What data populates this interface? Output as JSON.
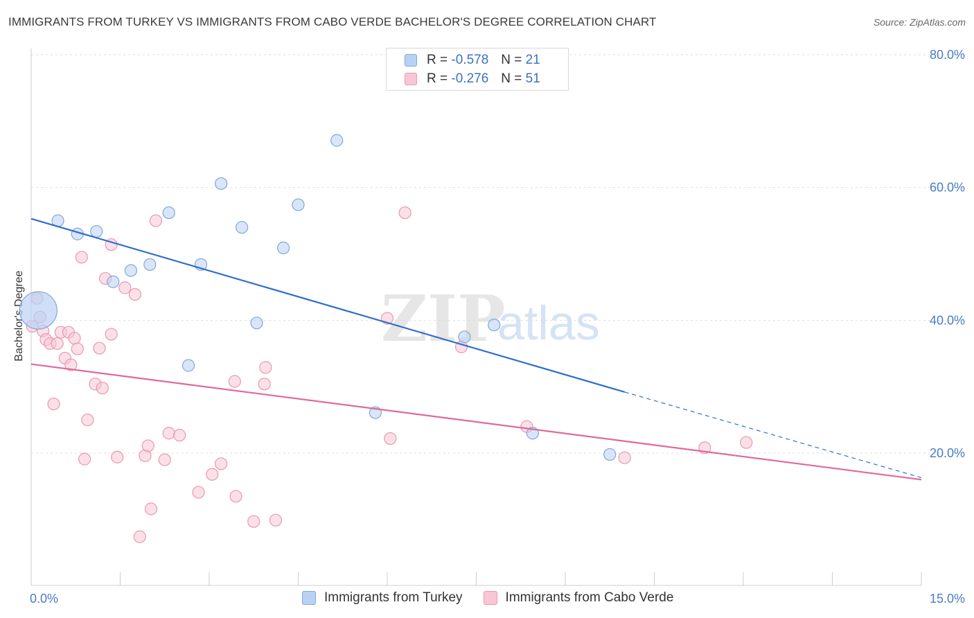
{
  "header": {
    "title": "IMMIGRANTS FROM TURKEY VS IMMIGRANTS FROM CABO VERDE BACHELOR'S DEGREE CORRELATION CHART",
    "source": "Source: ZipAtlas.com"
  },
  "watermark": {
    "zip": "ZIP",
    "atlas": "atlas"
  },
  "legend": {
    "rows": [
      {
        "r_label": "R =",
        "r_value": "-0.578",
        "n_label": "N =",
        "n_value": "21"
      },
      {
        "r_label": "R =",
        "r_value": "-0.276",
        "n_label": "N =",
        "n_value": "51"
      }
    ]
  },
  "colors": {
    "turkey_fill": "#b9d2f3",
    "turkey_stroke": "#7fa6dd",
    "turkey_line": "#2e6fcc",
    "cabo_fill": "#f8c6d5",
    "cabo_stroke": "#e997b0",
    "cabo_line": "#e0689a",
    "tick_label": "#4a7cc4",
    "grid": "#dddddd"
  },
  "chart_data": {
    "type": "scatter",
    "title": "IMMIGRANTS FROM TURKEY VS IMMIGRANTS FROM CABO VERDE BACHELOR'S DEGREE CORRELATION CHART",
    "xlabel": "",
    "ylabel": "Bachelor's Degree",
    "xlim": [
      0,
      15
    ],
    "ylim": [
      0,
      82
    ],
    "x_tick_labels": [
      {
        "value": 0,
        "label": "0.0%"
      },
      {
        "value": 15,
        "label": "15.0%"
      }
    ],
    "y_tick_labels": [
      {
        "value": 20,
        "label": "20.0%"
      },
      {
        "value": 40,
        "label": "40.0%"
      },
      {
        "value": 60,
        "label": "60.0%"
      },
      {
        "value": 80,
        "label": "80.0%"
      }
    ],
    "legend_position": "top-center",
    "grid": true,
    "series": [
      {
        "name": "Immigrants from Turkey",
        "points": [
          {
            "x": 0.12,
            "y": 41.5,
            "big": true
          },
          {
            "x": 0.45,
            "y": 55.0
          },
          {
            "x": 0.78,
            "y": 53.0
          },
          {
            "x": 1.1,
            "y": 53.4
          },
          {
            "x": 1.38,
            "y": 45.8
          },
          {
            "x": 1.68,
            "y": 47.5
          },
          {
            "x": 2.0,
            "y": 48.4
          },
          {
            "x": 2.32,
            "y": 56.2
          },
          {
            "x": 2.65,
            "y": 33.2
          },
          {
            "x": 2.86,
            "y": 48.4
          },
          {
            "x": 3.2,
            "y": 60.6
          },
          {
            "x": 3.55,
            "y": 54.0
          },
          {
            "x": 3.8,
            "y": 39.6
          },
          {
            "x": 4.25,
            "y": 50.9
          },
          {
            "x": 4.5,
            "y": 57.4
          },
          {
            "x": 5.15,
            "y": 67.1
          },
          {
            "x": 5.8,
            "y": 26.1
          },
          {
            "x": 7.3,
            "y": 37.5
          },
          {
            "x": 7.8,
            "y": 39.3
          },
          {
            "x": 8.45,
            "y": 23.0
          },
          {
            "x": 9.75,
            "y": 19.8
          }
        ],
        "trendline": {
          "x0": 0,
          "y0": 55.3,
          "x1": 10.0,
          "y1": 29.2,
          "dashed_to_x": 15,
          "dashed_to_y": 16.3
        }
      },
      {
        "name": "Immigrants from Cabo Verde",
        "points": [
          {
            "x": 0.02,
            "y": 39.1
          },
          {
            "x": 0.1,
            "y": 43.3
          },
          {
            "x": 0.15,
            "y": 40.5
          },
          {
            "x": 0.2,
            "y": 38.4
          },
          {
            "x": 0.25,
            "y": 37.1
          },
          {
            "x": 0.32,
            "y": 36.5
          },
          {
            "x": 0.38,
            "y": 27.4
          },
          {
            "x": 0.44,
            "y": 36.5
          },
          {
            "x": 0.5,
            "y": 38.2
          },
          {
            "x": 0.57,
            "y": 34.3
          },
          {
            "x": 0.63,
            "y": 38.2
          },
          {
            "x": 0.67,
            "y": 33.3
          },
          {
            "x": 0.73,
            "y": 37.3
          },
          {
            "x": 0.78,
            "y": 35.7
          },
          {
            "x": 0.85,
            "y": 49.5
          },
          {
            "x": 0.9,
            "y": 19.1
          },
          {
            "x": 0.95,
            "y": 25.0
          },
          {
            "x": 1.08,
            "y": 30.4
          },
          {
            "x": 1.15,
            "y": 35.8
          },
          {
            "x": 1.2,
            "y": 29.8
          },
          {
            "x": 1.25,
            "y": 46.3
          },
          {
            "x": 1.35,
            "y": 51.4
          },
          {
            "x": 1.35,
            "y": 37.9
          },
          {
            "x": 1.45,
            "y": 19.4
          },
          {
            "x": 1.58,
            "y": 44.9
          },
          {
            "x": 1.75,
            "y": 43.9
          },
          {
            "x": 1.83,
            "y": 7.4
          },
          {
            "x": 1.92,
            "y": 19.6
          },
          {
            "x": 1.97,
            "y": 21.1
          },
          {
            "x": 2.02,
            "y": 11.6
          },
          {
            "x": 2.1,
            "y": 55.0
          },
          {
            "x": 2.25,
            "y": 19.0
          },
          {
            "x": 2.32,
            "y": 23.0
          },
          {
            "x": 2.5,
            "y": 22.7
          },
          {
            "x": 2.82,
            "y": 14.1
          },
          {
            "x": 3.05,
            "y": 16.8
          },
          {
            "x": 3.2,
            "y": 18.4
          },
          {
            "x": 3.43,
            "y": 30.8
          },
          {
            "x": 3.45,
            "y": 13.5
          },
          {
            "x": 3.75,
            "y": 9.7
          },
          {
            "x": 3.93,
            "y": 30.4
          },
          {
            "x": 3.95,
            "y": 32.9
          },
          {
            "x": 4.12,
            "y": 9.9
          },
          {
            "x": 6.0,
            "y": 40.3
          },
          {
            "x": 6.05,
            "y": 22.2
          },
          {
            "x": 6.3,
            "y": 56.2
          },
          {
            "x": 7.25,
            "y": 36.0
          },
          {
            "x": 8.35,
            "y": 24.0
          },
          {
            "x": 10.0,
            "y": 19.3
          },
          {
            "x": 11.35,
            "y": 20.8
          },
          {
            "x": 12.05,
            "y": 21.6
          }
        ],
        "trendline": {
          "x0": 0,
          "y0": 33.4,
          "x1": 15,
          "y1": 16.0
        }
      }
    ]
  }
}
